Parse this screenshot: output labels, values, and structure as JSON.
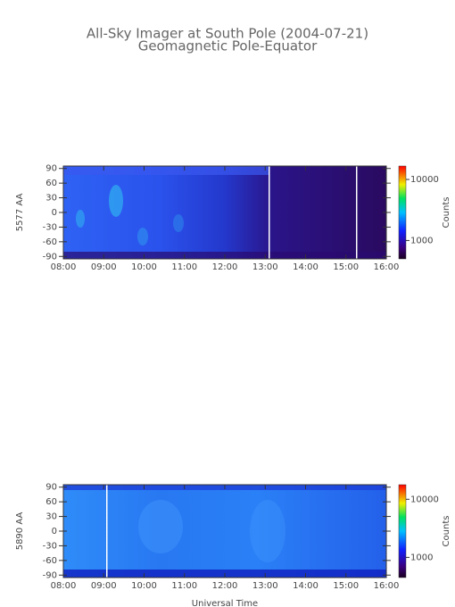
{
  "chart_data": [
    {
      "type": "heatmap",
      "title": "All-Sky Imager at South Pole (2004-07-21)",
      "subtitle": "Geomagnetic Pole-Equator",
      "ylabel": "5577 AA",
      "xlim": [
        8,
        16
      ],
      "xticks": [
        {
          "value": 8,
          "label": "08:00"
        },
        {
          "value": 9,
          "label": "09:00"
        },
        {
          "value": 10,
          "label": "10:00"
        },
        {
          "value": 11,
          "label": "11:00"
        },
        {
          "value": 12,
          "label": "12:00"
        },
        {
          "value": 13,
          "label": "13:00"
        },
        {
          "value": 14,
          "label": "14:00"
        },
        {
          "value": 15,
          "label": "15:00"
        },
        {
          "value": 16,
          "label": "16:00"
        }
      ],
      "ylim": [
        -95,
        95
      ],
      "yticks": [
        90,
        60,
        30,
        0,
        -30,
        -60,
        -90
      ],
      "clabel": "Counts",
      "cscale": "log",
      "clim": [
        500,
        16600
      ],
      "cticks": [
        1000,
        10000
      ]
    },
    {
      "type": "heatmap",
      "ylabel": "5890 AA",
      "xlabel": "Universal Time",
      "xlim": [
        8,
        16
      ],
      "xticks": [
        {
          "value": 8,
          "label": "08:00"
        },
        {
          "value": 9,
          "label": "09:00"
        },
        {
          "value": 10,
          "label": "10:00"
        },
        {
          "value": 11,
          "label": "11:00"
        },
        {
          "value": 12,
          "label": "12:00"
        },
        {
          "value": 13,
          "label": "13:00"
        },
        {
          "value": 14,
          "label": "14:00"
        },
        {
          "value": 15,
          "label": "15:00"
        },
        {
          "value": 16,
          "label": "16:00"
        }
      ],
      "ylim": [
        -95,
        95
      ],
      "yticks": [
        90,
        60,
        30,
        0,
        -30,
        -60,
        -90
      ],
      "clabel": "Counts",
      "cscale": "log",
      "clim": [
        450,
        17800
      ],
      "cticks": [
        1000,
        10000
      ]
    }
  ]
}
